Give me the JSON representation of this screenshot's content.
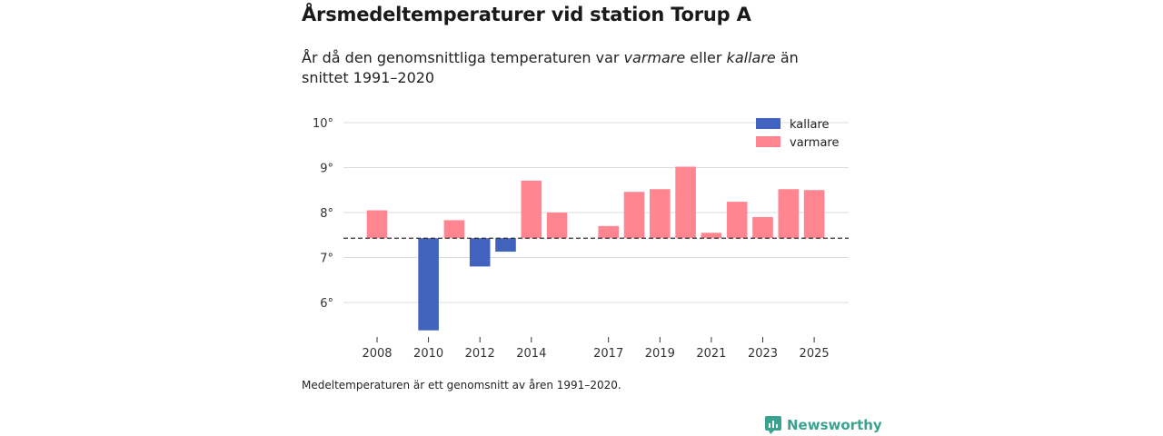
{
  "title": "Årsmedeltemperaturer vid station Torup A",
  "subtitle": {
    "pre": "År då den genomsnittliga temperaturen var ",
    "warm": "varmare",
    "mid": " eller ",
    "cold": "kallare",
    "post": " än snittet 1991–2020"
  },
  "footnote": "Medeltemperaturen är ett genomsnitt av åren 1991–2020.",
  "brand": "Newsworthy",
  "colors": {
    "colder": "#4263bd",
    "warmer": "#ff8590",
    "brand": "#3aa38f"
  },
  "chart_data": {
    "type": "bar",
    "baseline": 7.43,
    "ylim": [
      5.35,
      10.1
    ],
    "yticks": [
      6,
      7,
      8,
      9,
      10
    ],
    "ytick_labels": [
      "6°",
      "7°",
      "8°",
      "9°",
      "10°"
    ],
    "xticks": [
      2008,
      2010,
      2012,
      2014,
      2017,
      2019,
      2021,
      2023,
      2025
    ],
    "xtick_labels": [
      "2008",
      "2010",
      "2012",
      "2014",
      "2017",
      "2019",
      "2021",
      "2023",
      "2025"
    ],
    "xlim": [
      2007,
      2026
    ],
    "legend": [
      {
        "key": "colder",
        "label": "kallare"
      },
      {
        "key": "warmer",
        "label": "varmare"
      }
    ],
    "series": [
      {
        "year": 2008,
        "value": 8.05
      },
      {
        "year": 2010,
        "value": 5.38
      },
      {
        "year": 2011,
        "value": 7.83
      },
      {
        "year": 2012,
        "value": 6.8
      },
      {
        "year": 2013,
        "value": 7.13
      },
      {
        "year": 2014,
        "value": 8.71
      },
      {
        "year": 2015,
        "value": 8.0
      },
      {
        "year": 2017,
        "value": 7.7
      },
      {
        "year": 2018,
        "value": 8.46
      },
      {
        "year": 2019,
        "value": 8.52
      },
      {
        "year": 2020,
        "value": 9.02
      },
      {
        "year": 2021,
        "value": 7.55
      },
      {
        "year": 2022,
        "value": 8.24
      },
      {
        "year": 2023,
        "value": 7.9
      },
      {
        "year": 2024,
        "value": 8.52
      },
      {
        "year": 2025,
        "value": 8.5
      }
    ]
  }
}
